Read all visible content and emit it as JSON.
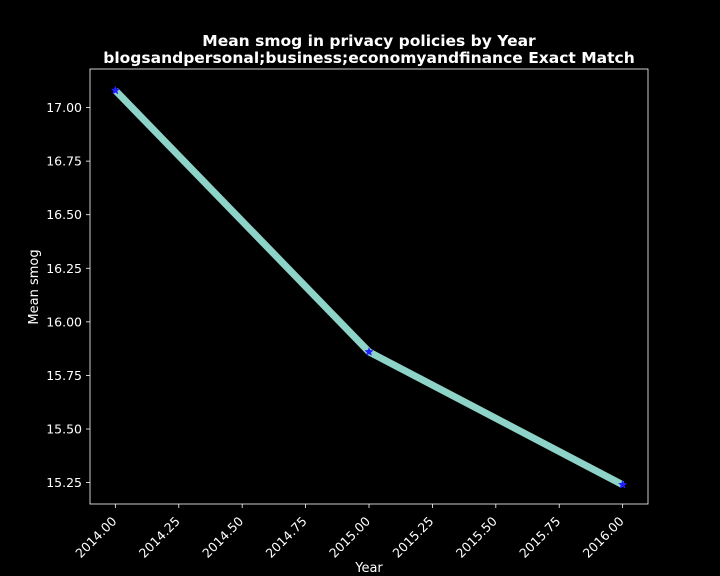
{
  "chart_data": {
    "type": "line",
    "title": "Mean smog in privacy policies by Year",
    "subtitle": "blogsandpersonal;business;economyandfinance Exact Match",
    "xlabel": "Year",
    "ylabel": "Mean smog",
    "x": [
      2014.0,
      2015.0,
      2016.0
    ],
    "series": [
      {
        "values": [
          17.08,
          15.86,
          15.24
        ]
      }
    ],
    "xlim": [
      2013.9,
      2016.1
    ],
    "ylim": [
      15.15,
      17.18
    ],
    "xticks": [
      2014.0,
      2014.25,
      2014.5,
      2014.75,
      2015.0,
      2015.25,
      2015.5,
      2015.75,
      2016.0
    ],
    "xtick_labels": [
      "2014.00",
      "2014.25",
      "2014.50",
      "2014.75",
      "2015.00",
      "2015.25",
      "2015.50",
      "2015.75",
      "2016.00"
    ],
    "yticks": [
      15.25,
      15.5,
      15.75,
      16.0,
      16.25,
      16.5,
      16.75,
      17.0
    ],
    "ytick_labels": [
      "15.25",
      "15.50",
      "15.75",
      "16.00",
      "16.25",
      "16.50",
      "16.75",
      "17.00"
    ],
    "grid": false,
    "legend": "none",
    "colors": {
      "background": "#000000",
      "line": "#8dd3c7",
      "marker": "#1f1fff",
      "axis": "#ffffff",
      "text": "#ffffff"
    }
  }
}
